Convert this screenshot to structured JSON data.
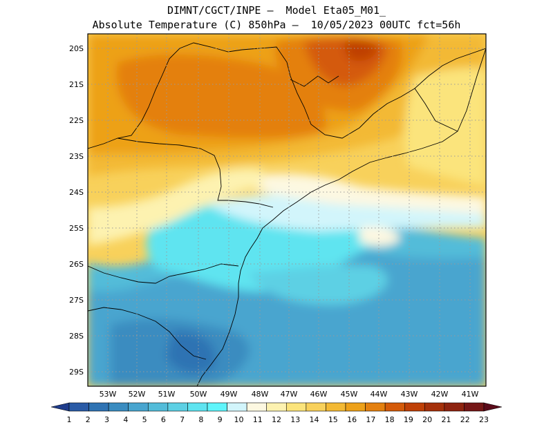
{
  "title": {
    "line1": "DIMNT/CGCT/INPE –  Model Eta05_M01_",
    "line2": "Absolute Temperature (C) 850hPa –  10/05/2023 00UTC fct=56h"
  },
  "map": {
    "lat_labels": [
      "20S",
      "21S",
      "22S",
      "23S",
      "24S",
      "25S",
      "26S",
      "27S",
      "28S",
      "29S"
    ],
    "lon_labels": [
      "53W",
      "52W",
      "51W",
      "50W",
      "49W",
      "48W",
      "47W",
      "46W",
      "45W",
      "44W",
      "43W",
      "42W",
      "41W"
    ],
    "field": "temperature-850hPa"
  },
  "colorbar": {
    "labels": [
      "1",
      "2",
      "3",
      "4",
      "5",
      "6",
      "7",
      "8",
      "9",
      "10",
      "11",
      "12",
      "13",
      "14",
      "15",
      "16",
      "17",
      "18",
      "19",
      "20",
      "21",
      "22",
      "23"
    ],
    "colors": [
      "#1f3d8c",
      "#2a5ba6",
      "#2f73b3",
      "#3a8cc0",
      "#48a5cf",
      "#53bcd9",
      "#5dd0e4",
      "#5ee4f0",
      "#5ff5fb",
      "#d2f5fb",
      "#fdf8e1",
      "#fdf2b0",
      "#fbe47b",
      "#f8d15b",
      "#f3b934",
      "#eda119",
      "#e4800f",
      "#d45a09",
      "#bf4006",
      "#a5300a",
      "#8e230f",
      "#751616",
      "#5a0a1a"
    ]
  }
}
